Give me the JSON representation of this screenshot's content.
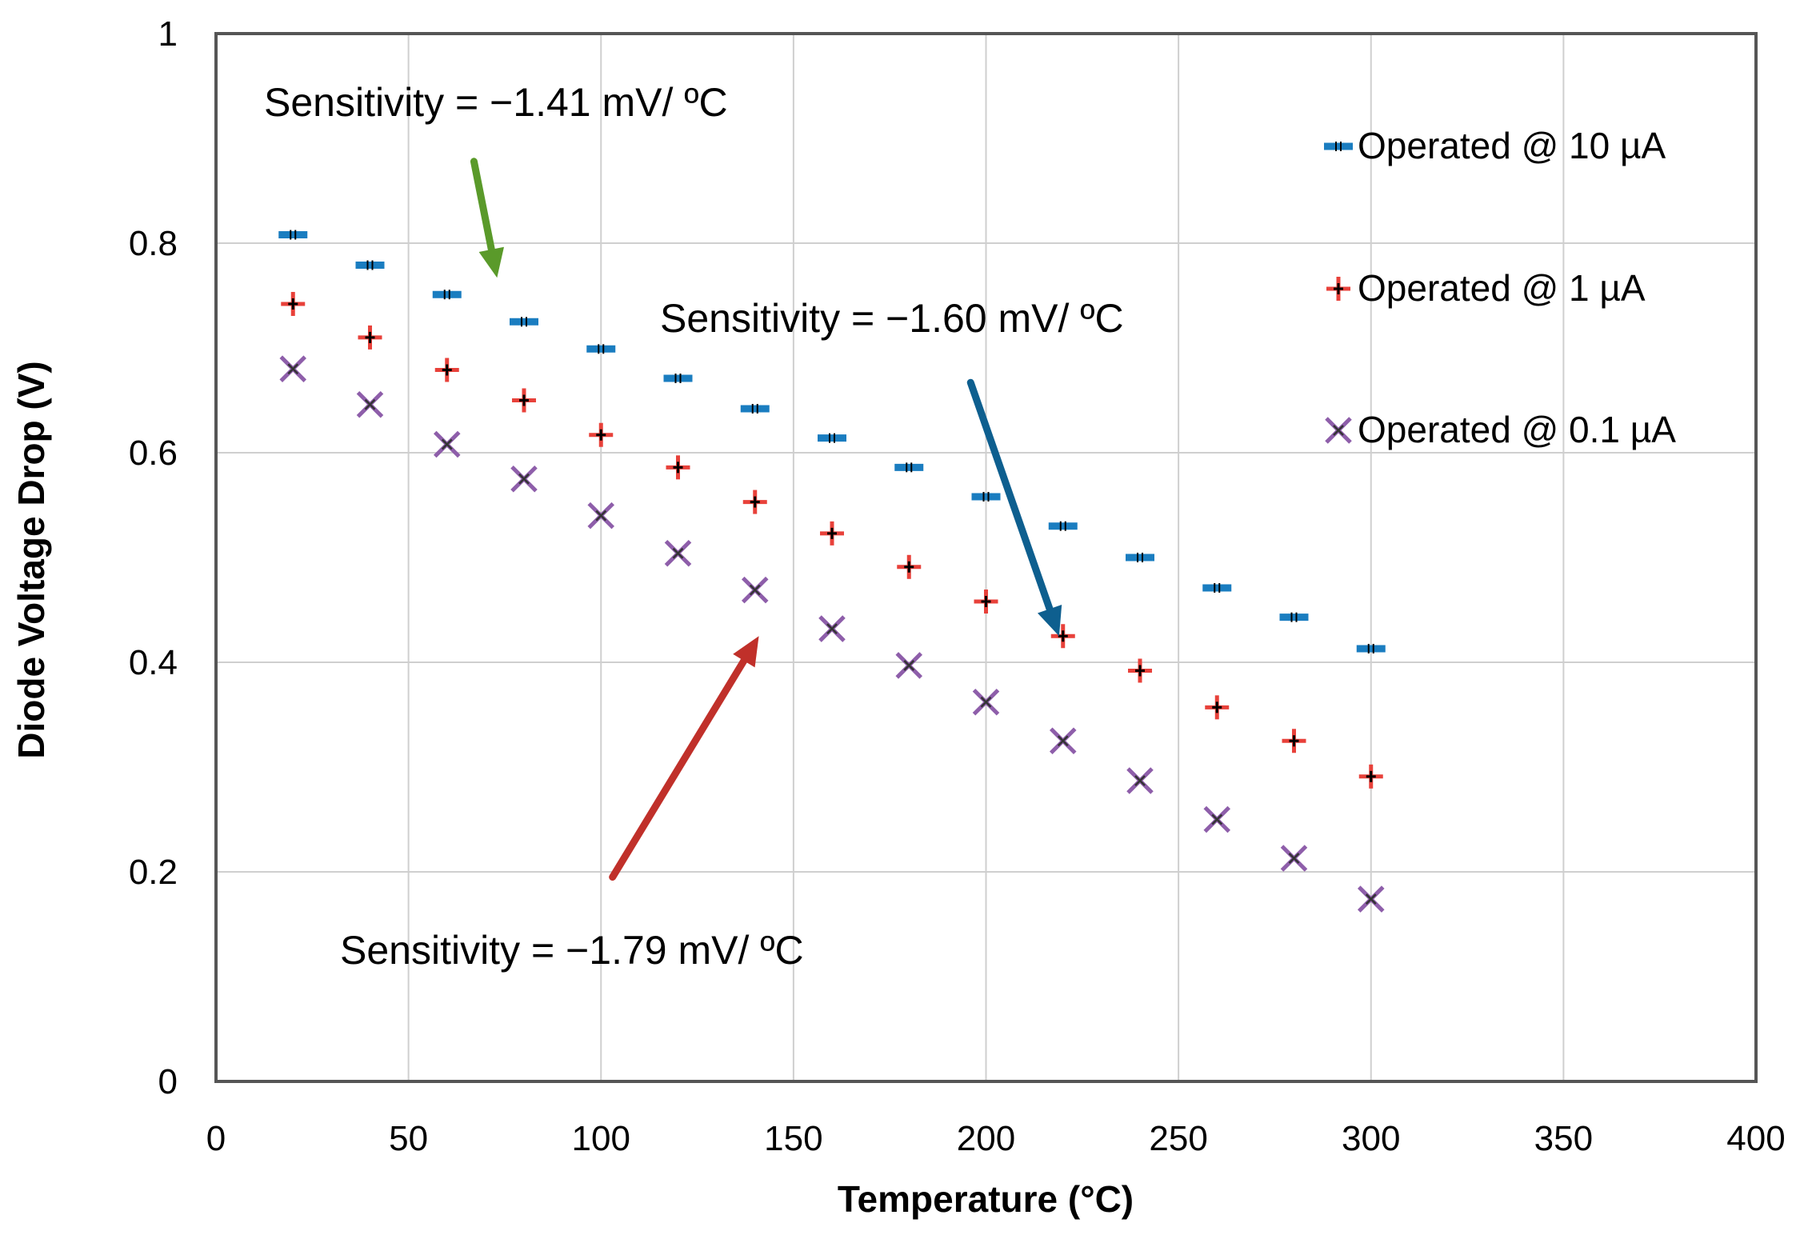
{
  "chart_data": {
    "type": "scatter",
    "title": "",
    "xlabel": "Temperature (°C)",
    "ylabel": "Diode Voltage Drop (V)",
    "xlim": [
      0,
      400
    ],
    "ylim": [
      0,
      1
    ],
    "xticks": [
      0,
      50,
      100,
      150,
      200,
      250,
      300,
      350,
      400
    ],
    "yticks": [
      0,
      0.2,
      0.4,
      0.6,
      0.8,
      1
    ],
    "ytick_labels": [
      "0",
      "0.2",
      "0.4",
      "0.6",
      "0.8",
      "1"
    ],
    "grid": true,
    "legend_position": "right",
    "x": [
      20,
      40,
      60,
      80,
      100,
      120,
      140,
      160,
      180,
      200,
      220,
      240,
      260,
      280,
      300
    ],
    "series": [
      {
        "name": "Operated @ 10 µA",
        "marker": "dash",
        "color": "#1a7dc0",
        "values": [
          0.808,
          0.779,
          0.751,
          0.725,
          0.699,
          0.671,
          0.642,
          0.614,
          0.586,
          0.558,
          0.53,
          0.5,
          0.471,
          0.443,
          0.413
        ]
      },
      {
        "name": "Operated @ 1 µA",
        "marker": "plus",
        "color": "#e8413a",
        "values": [
          0.742,
          0.71,
          0.679,
          0.65,
          0.617,
          0.586,
          0.553,
          0.523,
          0.491,
          0.458,
          0.425,
          0.392,
          0.357,
          0.325,
          0.291
        ]
      },
      {
        "name": "Operated @ 0.1 µA",
        "marker": "x",
        "color": "#8e5eaa",
        "values": [
          0.68,
          0.646,
          0.608,
          0.575,
          0.54,
          0.504,
          0.469,
          0.432,
          0.397,
          0.362,
          0.325,
          0.287,
          0.25,
          0.213,
          0.174
        ]
      }
    ],
    "annotations": [
      {
        "text": "Sensitivity = −1.41 mV/ ºC",
        "color": "#5a9a2a",
        "arrow_from": [
          67,
          0.878
        ],
        "arrow_to": [
          73,
          0.767
        ]
      },
      {
        "text": "Sensitivity = −1.60 mV/ ºC",
        "color": "#0e5f8f",
        "arrow_from": [
          196,
          0.667
        ],
        "arrow_to": [
          219,
          0.425
        ]
      },
      {
        "text": "Sensitivity = −1.79 mV/ ºC",
        "color": "#c0302a",
        "arrow_from": [
          103,
          0.195
        ],
        "arrow_to": [
          141,
          0.425
        ]
      }
    ]
  }
}
